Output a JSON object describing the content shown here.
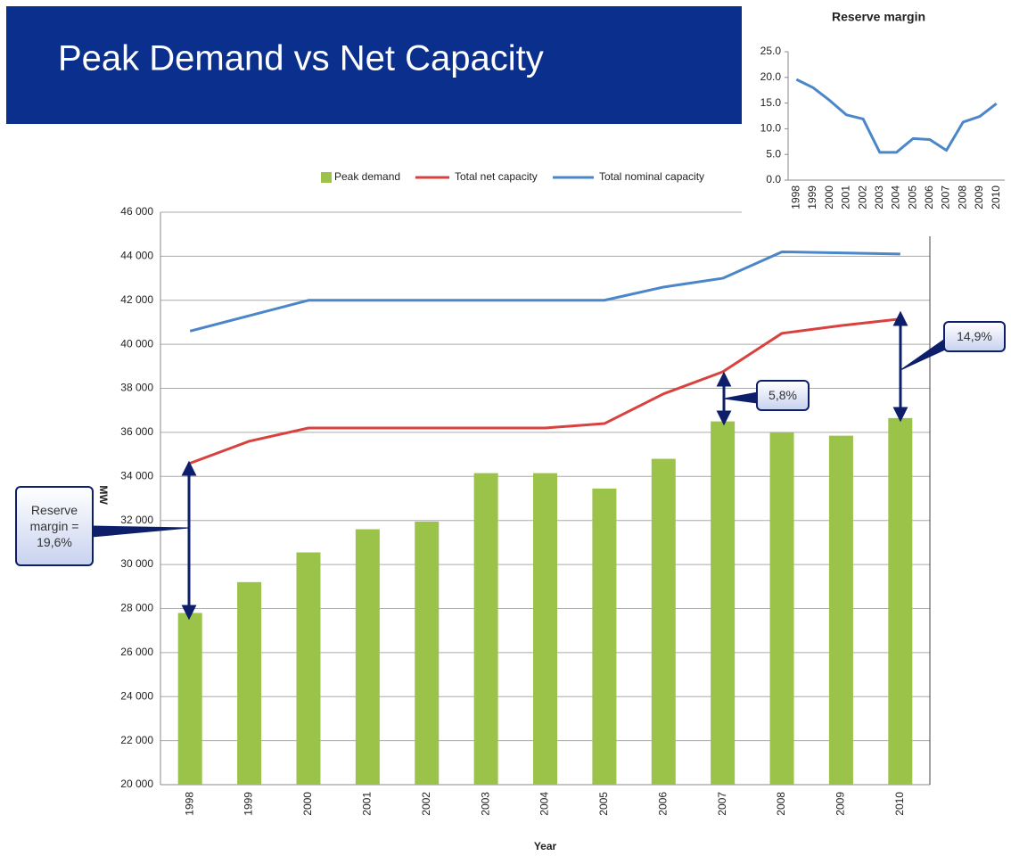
{
  "title": "Peak Demand vs Net Capacity",
  "chart_data": [
    {
      "type": "bar",
      "categories": [
        "1998",
        "1999",
        "2000",
        "2001",
        "2002",
        "2003",
        "2004",
        "2005",
        "2006",
        "2007",
        "2008",
        "2009",
        "2010"
      ],
      "series": [
        {
          "name": "Peak demand",
          "type": "bar",
          "color": "#9bc34a",
          "values": [
            27800,
            29200,
            30550,
            31600,
            31950,
            34150,
            34150,
            33450,
            34800,
            36500,
            36000,
            35850,
            36650
          ]
        },
        {
          "name": "Total net capacity",
          "type": "line",
          "color": "#d9413e",
          "values": [
            34600,
            35600,
            36200,
            36200,
            36200,
            36200,
            36200,
            36400,
            37750,
            38750,
            40500,
            40850,
            41150
          ]
        },
        {
          "name": "Total nominal capacity",
          "type": "line",
          "color": "#4a86c8",
          "values": [
            40600,
            41300,
            42000,
            42000,
            42000,
            42000,
            42000,
            42000,
            42600,
            43000,
            44200,
            44150,
            44100
          ]
        }
      ],
      "ylim": [
        20000,
        46000
      ],
      "yticks": [
        {
          "value": 20000,
          "label": "20 000"
        },
        {
          "value": 22000,
          "label": "22 000"
        },
        {
          "value": 24000,
          "label": "24 000"
        },
        {
          "value": 26000,
          "label": "26 000"
        },
        {
          "value": 28000,
          "label": "28 000"
        },
        {
          "value": 30000,
          "label": "30 000"
        },
        {
          "value": 32000,
          "label": "32 000"
        },
        {
          "value": 34000,
          "label": "34 000"
        },
        {
          "value": 36000,
          "label": "36 000"
        },
        {
          "value": 38000,
          "label": "38 000"
        },
        {
          "value": 40000,
          "label": "40 000"
        },
        {
          "value": 42000,
          "label": "42 000"
        },
        {
          "value": 44000,
          "label": "44 000"
        },
        {
          "value": 46000,
          "label": "46 000"
        }
      ],
      "xlabel": "Year",
      "ylabel": "MW",
      "grid": true,
      "legend": "top",
      "annotations": [
        "Reserve margin = 19,6%",
        "5,8%",
        "14,9%"
      ]
    },
    {
      "type": "line",
      "title": "Reserve margin",
      "categories": [
        "1998",
        "1999",
        "2000",
        "2001",
        "2002",
        "2003",
        "2004",
        "2005",
        "2006",
        "2007",
        "2008",
        "2009",
        "2010"
      ],
      "values": [
        19.6,
        18.0,
        15.5,
        12.7,
        11.9,
        5.4,
        5.4,
        8.1,
        7.9,
        5.8,
        11.3,
        12.4,
        14.9
      ],
      "color": "#4a86c8",
      "ylim": [
        0,
        25
      ],
      "yticks": [
        {
          "value": 0,
          "label": "0.0"
        },
        {
          "value": 5,
          "label": "5.0"
        },
        {
          "value": 10,
          "label": "10.0"
        },
        {
          "value": 15,
          "label": "15.0"
        },
        {
          "value": 20,
          "label": "20.0"
        },
        {
          "value": 25,
          "label": "25.0"
        }
      ],
      "grid": false
    }
  ]
}
